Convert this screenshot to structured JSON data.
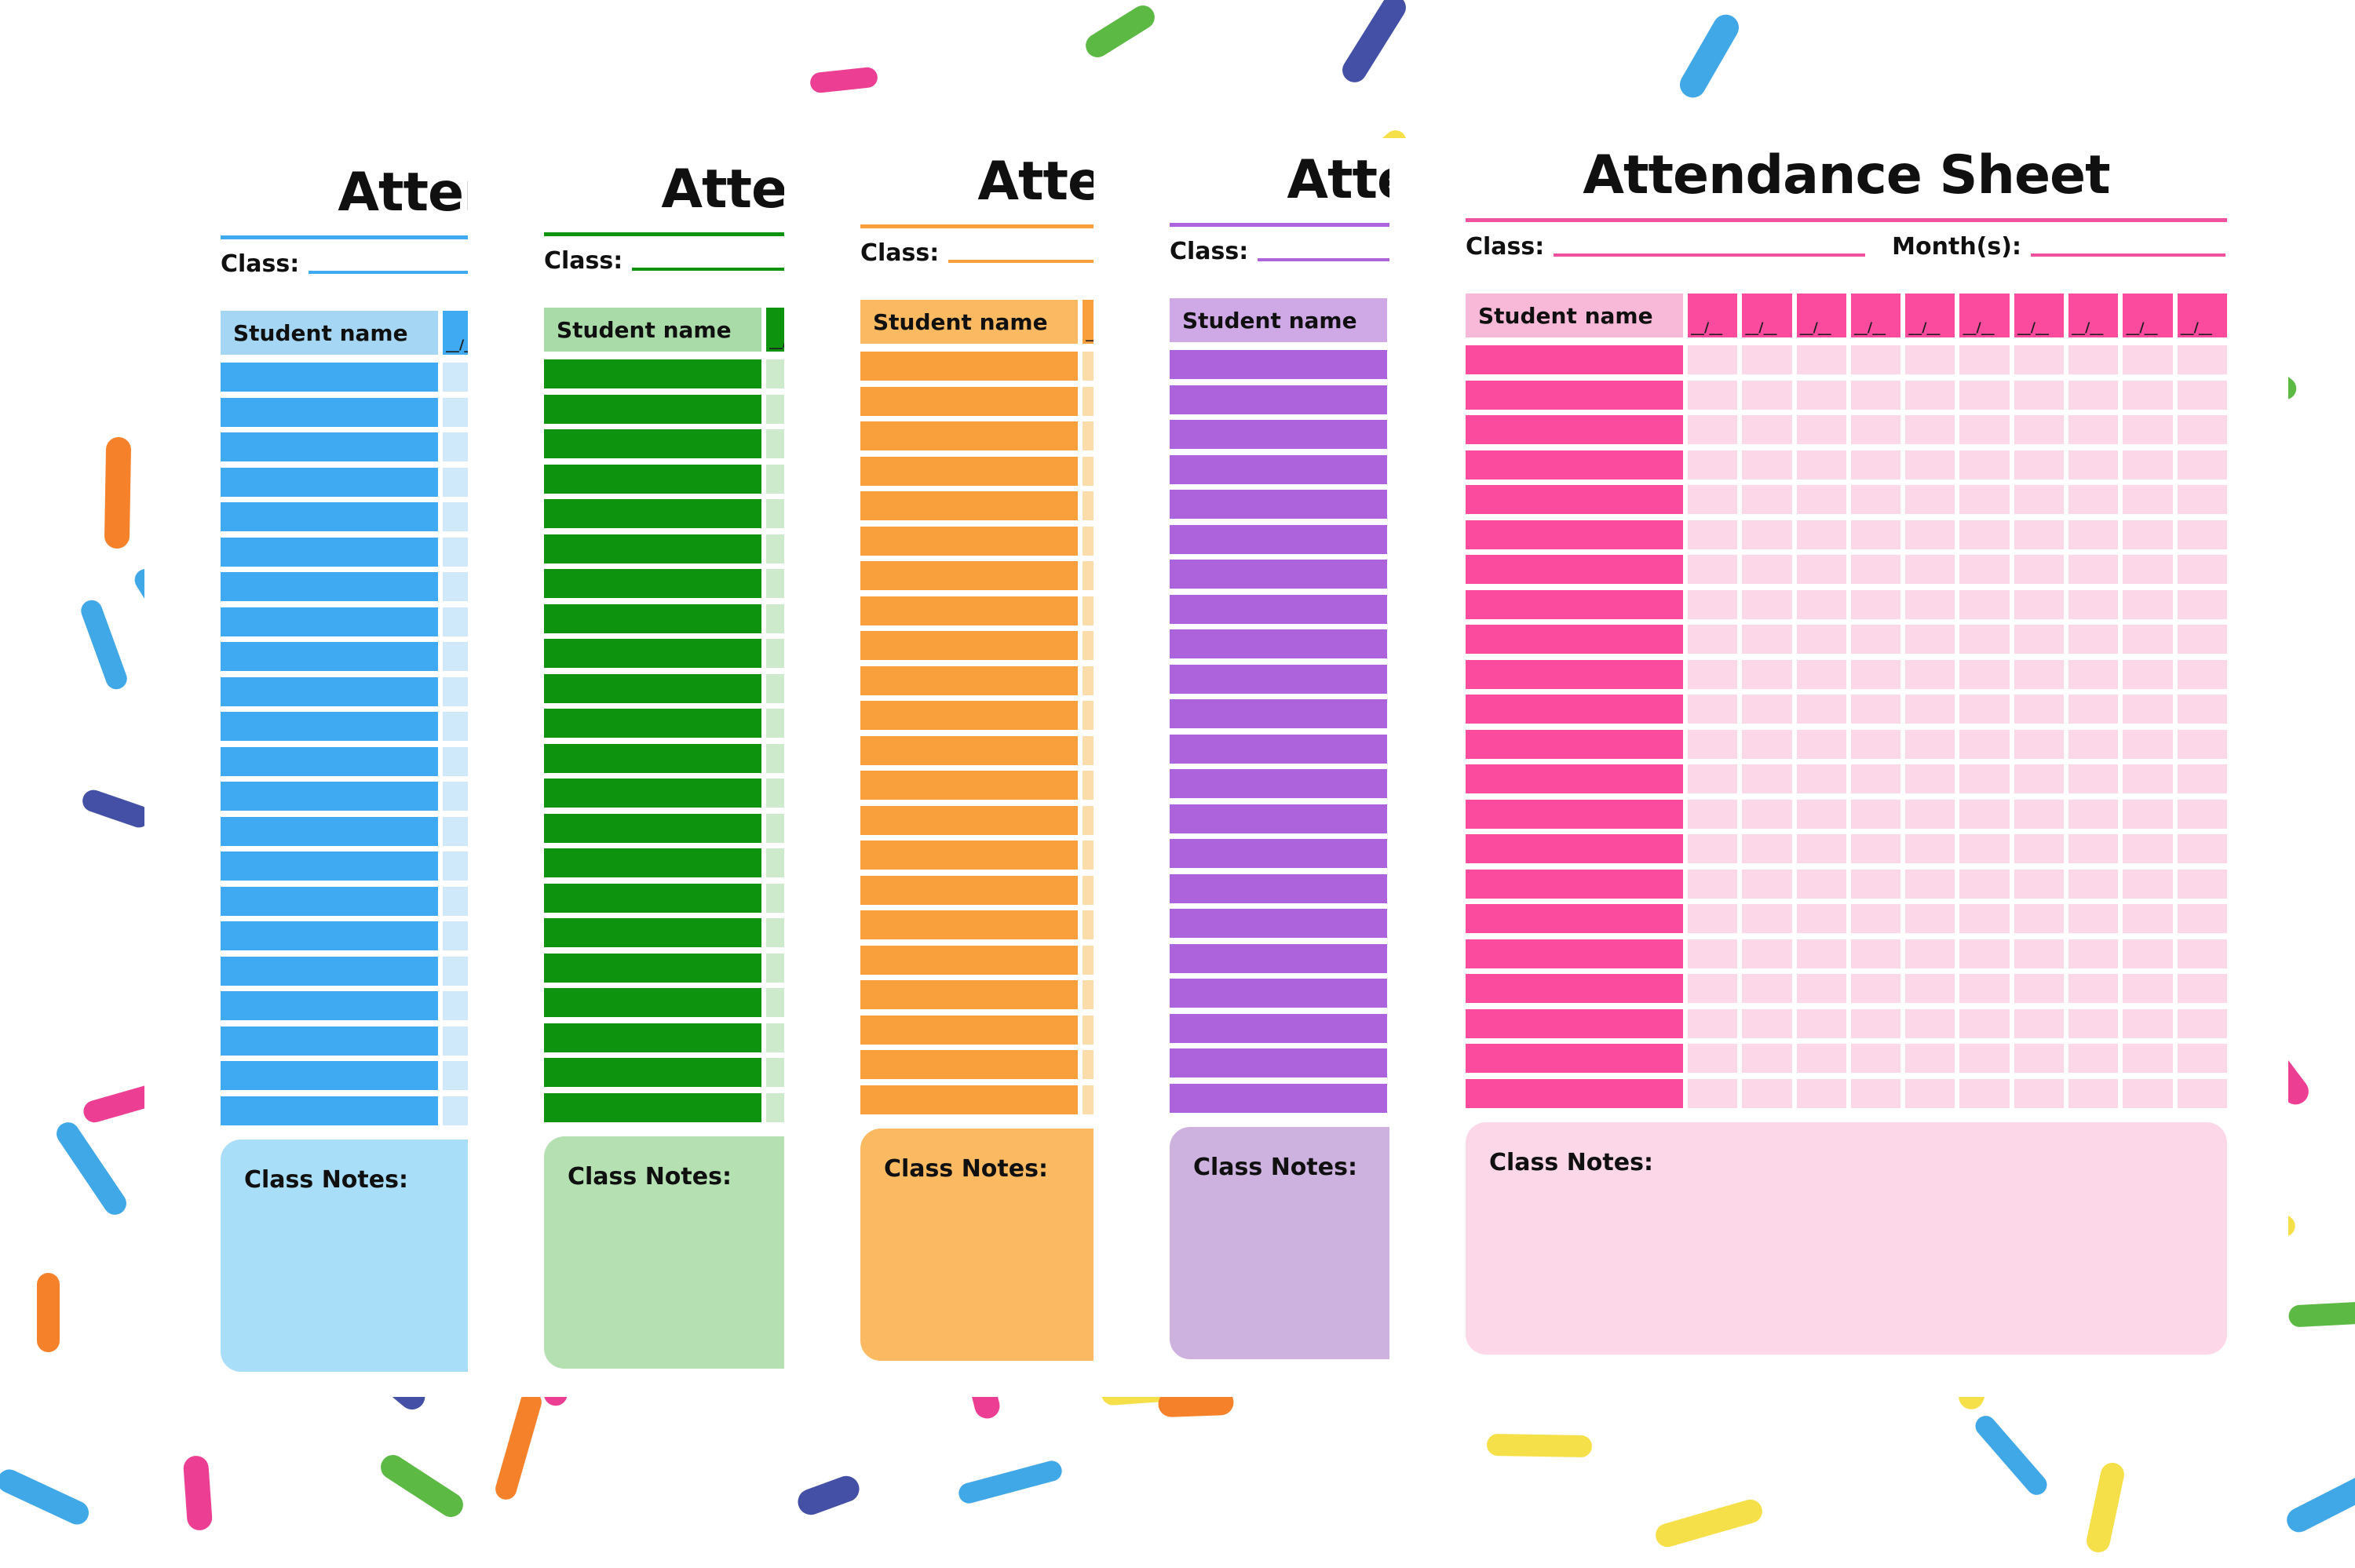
{
  "labels": {
    "title": "Attendance Sheet",
    "class": "Class:",
    "months": "Month(s):",
    "student_header": "Student name",
    "date_placeholder": "__/__",
    "notes": "Class Notes:"
  },
  "layout_counts": {
    "sheets": 5,
    "rows": 22,
    "date_columns": 10
  },
  "sheets": [
    {
      "name": "blue",
      "strong": "#3FA9F2",
      "header": "#A5D7F5",
      "cell": "#CFE9FB",
      "notes": "#A8DEF8",
      "line": "#3FA9F2"
    },
    {
      "name": "green",
      "strong": "#0D930D",
      "header": "#A9DBA9",
      "cell": "#CDEACD",
      "notes": "#B4E0B2",
      "line": "#0D930D"
    },
    {
      "name": "orange",
      "strong": "#F99F3C",
      "header": "#FBBA62",
      "cell": "#FDDCAC",
      "notes": "#FBBA62",
      "line": "#F99F3C"
    },
    {
      "name": "purple",
      "strong": "#AD63DC",
      "header": "#CFA9E6",
      "cell": "#E5CBF2",
      "notes": "#CDB2DF",
      "line": "#AD63DC"
    },
    {
      "name": "pink",
      "strong": "#FA4B9F",
      "header": "#F8B9D8",
      "cell": "#FBD7E7",
      "notes": "#FBD7E7",
      "line": "#F0519F"
    }
  ],
  "sprinkles": {
    "colors": [
      "#F6E049",
      "#EC3F94",
      "#F5812B",
      "#5CB944",
      "#41A8E8",
      "#4450A5"
    ]
  }
}
